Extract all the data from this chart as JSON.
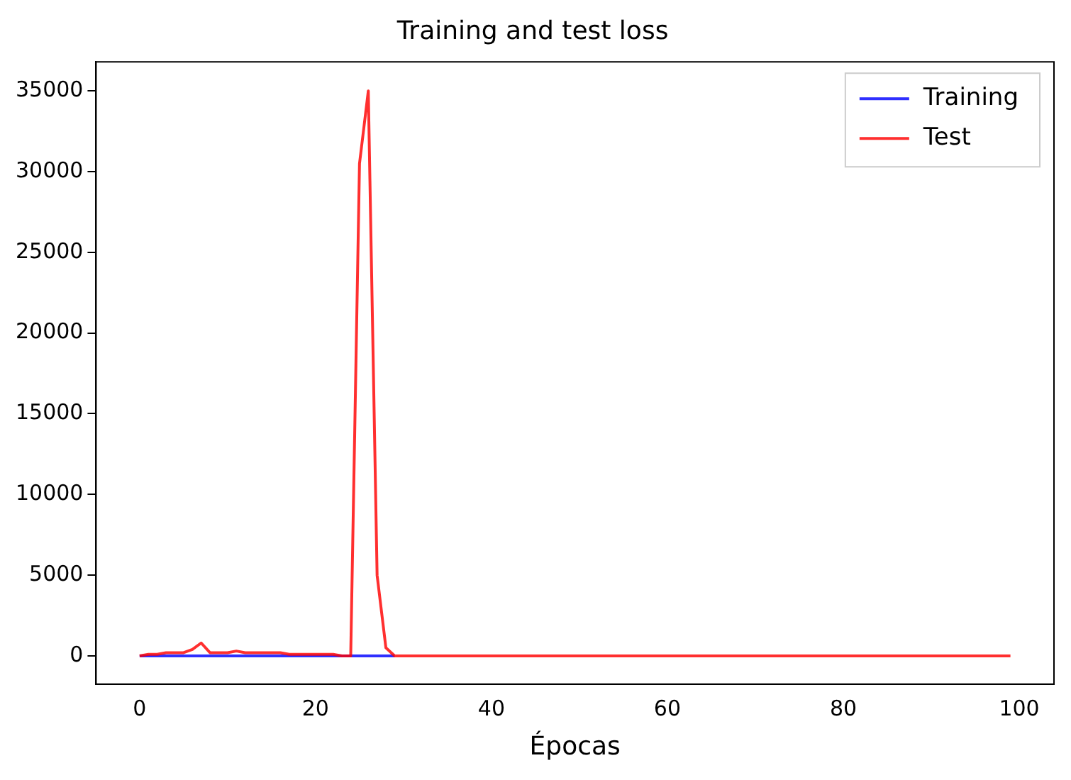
{
  "chart_data": {
    "type": "line",
    "title": "Training and test loss",
    "xlabel": "Épocas",
    "x": [
      0,
      1,
      2,
      3,
      4,
      5,
      6,
      7,
      8,
      9,
      10,
      11,
      12,
      13,
      14,
      15,
      16,
      17,
      18,
      19,
      20,
      21,
      22,
      23,
      24,
      25,
      26,
      27,
      28,
      29,
      30,
      31,
      32,
      33,
      34,
      35,
      36,
      37,
      38,
      39,
      40,
      41,
      42,
      43,
      44,
      45,
      46,
      47,
      48,
      49,
      50,
      51,
      52,
      53,
      54,
      55,
      56,
      57,
      58,
      59,
      60,
      61,
      62,
      63,
      64,
      65,
      66,
      67,
      68,
      69,
      70,
      71,
      72,
      73,
      74,
      75,
      76,
      77,
      78,
      79,
      80,
      81,
      82,
      83,
      84,
      85,
      86,
      87,
      88,
      89,
      90,
      91,
      92,
      93,
      94,
      95,
      96,
      97,
      98,
      99
    ],
    "series": [
      {
        "name": "Training",
        "color": "#0000ff",
        "values": [
          0,
          0,
          0,
          0,
          0,
          0,
          0,
          0,
          0,
          0,
          0,
          0,
          0,
          0,
          0,
          0,
          0,
          0,
          0,
          0,
          0,
          0,
          0,
          0,
          0,
          0,
          0,
          0,
          0,
          0,
          null,
          null,
          null,
          null,
          null,
          null,
          null,
          null,
          null,
          null,
          null,
          null,
          null,
          null,
          null,
          null,
          null,
          null,
          null,
          null,
          null,
          null,
          null,
          null,
          null,
          null,
          null,
          null,
          null,
          null,
          null,
          null,
          null,
          null,
          null,
          null,
          null,
          null,
          null,
          null,
          null,
          null,
          null,
          null,
          null,
          null,
          null,
          null,
          null,
          null,
          null,
          null,
          null,
          null,
          null,
          null,
          null,
          null,
          null,
          null,
          null,
          null,
          null,
          null,
          null,
          null,
          null,
          null,
          null,
          null
        ]
      },
      {
        "name": "Test",
        "color": "#ff0000",
        "values": [
          0,
          100,
          100,
          200,
          200,
          200,
          400,
          800,
          200,
          200,
          200,
          300,
          200,
          200,
          200,
          200,
          200,
          100,
          100,
          100,
          100,
          100,
          100,
          0,
          0,
          30500,
          35000,
          5000,
          500,
          0,
          0,
          0,
          0,
          0,
          0,
          0,
          0,
          0,
          0,
          0,
          0,
          0,
          0,
          0,
          0,
          0,
          0,
          0,
          0,
          0,
          0,
          0,
          0,
          0,
          0,
          0,
          0,
          0,
          0,
          0,
          0,
          0,
          0,
          0,
          0,
          0,
          0,
          0,
          0,
          0,
          0,
          0,
          0,
          0,
          0,
          0,
          0,
          0,
          0,
          0,
          0,
          0,
          0,
          0,
          0,
          0,
          0,
          0,
          0,
          0,
          0,
          0,
          0,
          0,
          0,
          0,
          0,
          0,
          0,
          0
        ]
      }
    ],
    "xlim": [
      -4.95,
      103.95
    ],
    "xticks": [
      0,
      20,
      40,
      60,
      80,
      100
    ],
    "ylim": [
      -1750,
      36800
    ],
    "yticks": [
      0,
      5000,
      10000,
      15000,
      20000,
      25000,
      30000,
      35000
    ],
    "legend": "top right",
    "grid": false,
    "marker": "none",
    "line_style": "solid"
  }
}
